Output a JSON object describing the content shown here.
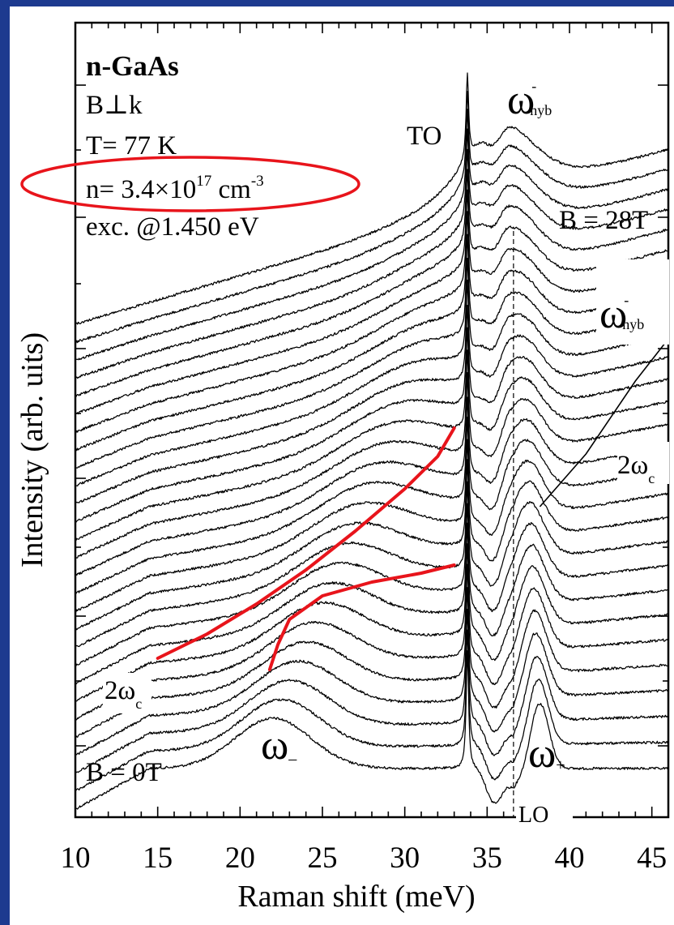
{
  "chart_data": {
    "type": "line",
    "title": "",
    "xlabel": "Raman shift (meV)",
    "ylabel": "Intensity (arb. uits)",
    "xlim": [
      10,
      46
    ],
    "xticks": [
      "10",
      "15",
      "20",
      "25",
      "30",
      "35",
      "40",
      "45"
    ],
    "y_scale": "arbitrary (spectra offset vertically)",
    "grid": false,
    "legend": "none",
    "series_count": 28,
    "field_range_labels": {
      "bottom": "B = 0T",
      "top": "B = 28T"
    },
    "info_box": {
      "material": "n-GaAs",
      "geometry": "B⊥k",
      "temperature": "T= 77 K",
      "density_prefix": "n= 3.4×10",
      "density_exp": "17",
      "density_unit": " cm",
      "density_unit_exp": "-3",
      "excitation": "exc. @1.450 eV"
    },
    "annotations": {
      "to": "TO",
      "lo": "LO",
      "omega_symbol": "ω",
      "two_omega": "2ω",
      "sub_c": "c",
      "sub_hyb": "hyb",
      "sup_minus": "-",
      "sub_minus": "–",
      "sub_plus": "+"
    },
    "phonons": {
      "TO_meV": 33.8,
      "LO_meV": 36.6
    },
    "highlight_circle_color": "#e8141b",
    "fit_line_color": "#e8141b",
    "red_fits": [
      {
        "name": "2ωc",
        "x": [
          15.0,
          18.0,
          21.0,
          24.0,
          27.0,
          30.0,
          32.0,
          33.0
        ]
      },
      {
        "name": "ω−",
        "x": [
          21.8,
          22.3,
          23.0,
          25.0,
          28.0,
          31.0,
          33.0
        ]
      }
    ]
  }
}
